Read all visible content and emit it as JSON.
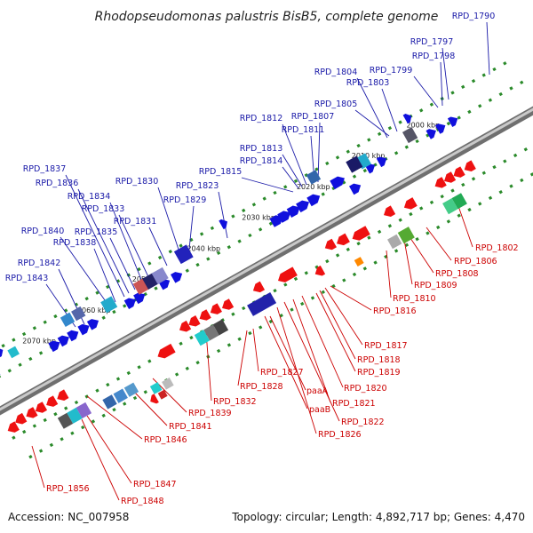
{
  "title": "Rhodopseudomonas palustris BisB5, complete genome",
  "footer": {
    "accession": "Accession: NC_007958",
    "summary": "Topology: circular; Length: 4,892,717 bp; Genes: 4,470"
  },
  "colors": {
    "forward_label": "#1a1aa8",
    "reverse_label": "#cc0000",
    "forward_gene": "#1010dd",
    "reverse_gene": "#ee1111",
    "tick": "#2a8a2a",
    "backbone": "#888888"
  },
  "diagram": {
    "kbp_start": 1995,
    "kbp_end": 2078
  },
  "ticks": [
    {
      "text": "2000 kbp",
      "kbp": 2000
    },
    {
      "text": "2010 kbp",
      "kbp": 2010
    },
    {
      "text": "2020 kbp",
      "kbp": 2020
    },
    {
      "text": "2030 kbp",
      "kbp": 2030
    },
    {
      "text": "2040 kbp",
      "kbp": 2040
    },
    {
      "text": "2050 kbp",
      "kbp": 2050
    },
    {
      "text": "2060 kbp",
      "kbp": 2060
    },
    {
      "text": "2070 kbp",
      "kbp": 2070
    }
  ],
  "forward_labels": [
    "RPD_1790",
    "RPD_1797",
    "RPD_1798",
    "RPD_1799",
    "RPD_1803",
    "RPD_1804",
    "RPD_1805",
    "RPD_1807",
    "RPD_1811",
    "RPD_1812",
    "RPD_1813",
    "RPD_1814",
    "RPD_1815",
    "RPD_1823",
    "RPD_1829",
    "RPD_1830",
    "RPD_1831",
    "RPD_1833",
    "RPD_1834",
    "RPD_1835",
    "RPD_1836",
    "RPD_1837",
    "RPD_1838",
    "RPD_1840",
    "RPD_1842",
    "RPD_1843"
  ],
  "reverse_labels": [
    "RPD_1802",
    "RPD_1806",
    "RPD_1808",
    "RPD_1809",
    "RPD_1810",
    "RPD_1816",
    "RPD_1817",
    "RPD_1818",
    "RPD_1819",
    "RPD_1820",
    "RPD_1821",
    "RPD_1822",
    "RPD_1826",
    "paaA",
    "paaB",
    "RPD_1827",
    "RPD_1828",
    "RPD_1832",
    "RPD_1839",
    "RPD_1841",
    "RPD_1846",
    "RPD_1847",
    "RPD_1848",
    "RPD_1856"
  ]
}
